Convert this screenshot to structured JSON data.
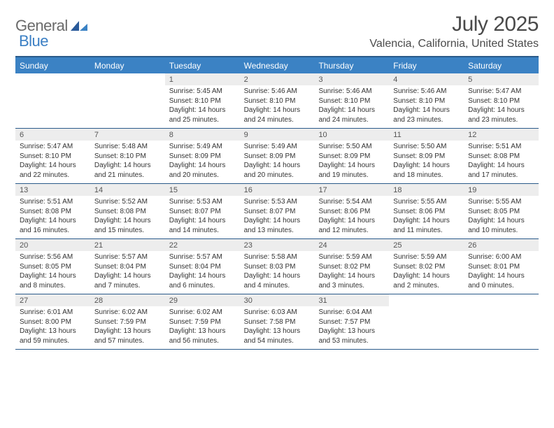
{
  "logo": {
    "text1": "General",
    "text2": "Blue"
  },
  "title": "July 2025",
  "location": "Valencia, California, United States",
  "colors": {
    "header_bg": "#3b82c4",
    "border": "#2a5a8a",
    "daynum_bg": "#ededed",
    "logo_gray": "#6a6a6a",
    "logo_blue": "#3b7fc4",
    "text": "#333333"
  },
  "day_names": [
    "Sunday",
    "Monday",
    "Tuesday",
    "Wednesday",
    "Thursday",
    "Friday",
    "Saturday"
  ],
  "weeks": [
    [
      null,
      null,
      {
        "num": "1",
        "sunrise": "5:45 AM",
        "sunset": "8:10 PM",
        "daylight": "14 hours and 25 minutes."
      },
      {
        "num": "2",
        "sunrise": "5:46 AM",
        "sunset": "8:10 PM",
        "daylight": "14 hours and 24 minutes."
      },
      {
        "num": "3",
        "sunrise": "5:46 AM",
        "sunset": "8:10 PM",
        "daylight": "14 hours and 24 minutes."
      },
      {
        "num": "4",
        "sunrise": "5:46 AM",
        "sunset": "8:10 PM",
        "daylight": "14 hours and 23 minutes."
      },
      {
        "num": "5",
        "sunrise": "5:47 AM",
        "sunset": "8:10 PM",
        "daylight": "14 hours and 23 minutes."
      }
    ],
    [
      {
        "num": "6",
        "sunrise": "5:47 AM",
        "sunset": "8:10 PM",
        "daylight": "14 hours and 22 minutes."
      },
      {
        "num": "7",
        "sunrise": "5:48 AM",
        "sunset": "8:10 PM",
        "daylight": "14 hours and 21 minutes."
      },
      {
        "num": "8",
        "sunrise": "5:49 AM",
        "sunset": "8:09 PM",
        "daylight": "14 hours and 20 minutes."
      },
      {
        "num": "9",
        "sunrise": "5:49 AM",
        "sunset": "8:09 PM",
        "daylight": "14 hours and 20 minutes."
      },
      {
        "num": "10",
        "sunrise": "5:50 AM",
        "sunset": "8:09 PM",
        "daylight": "14 hours and 19 minutes."
      },
      {
        "num": "11",
        "sunrise": "5:50 AM",
        "sunset": "8:09 PM",
        "daylight": "14 hours and 18 minutes."
      },
      {
        "num": "12",
        "sunrise": "5:51 AM",
        "sunset": "8:08 PM",
        "daylight": "14 hours and 17 minutes."
      }
    ],
    [
      {
        "num": "13",
        "sunrise": "5:51 AM",
        "sunset": "8:08 PM",
        "daylight": "14 hours and 16 minutes."
      },
      {
        "num": "14",
        "sunrise": "5:52 AM",
        "sunset": "8:08 PM",
        "daylight": "14 hours and 15 minutes."
      },
      {
        "num": "15",
        "sunrise": "5:53 AM",
        "sunset": "8:07 PM",
        "daylight": "14 hours and 14 minutes."
      },
      {
        "num": "16",
        "sunrise": "5:53 AM",
        "sunset": "8:07 PM",
        "daylight": "14 hours and 13 minutes."
      },
      {
        "num": "17",
        "sunrise": "5:54 AM",
        "sunset": "8:06 PM",
        "daylight": "14 hours and 12 minutes."
      },
      {
        "num": "18",
        "sunrise": "5:55 AM",
        "sunset": "8:06 PM",
        "daylight": "14 hours and 11 minutes."
      },
      {
        "num": "19",
        "sunrise": "5:55 AM",
        "sunset": "8:05 PM",
        "daylight": "14 hours and 10 minutes."
      }
    ],
    [
      {
        "num": "20",
        "sunrise": "5:56 AM",
        "sunset": "8:05 PM",
        "daylight": "14 hours and 8 minutes."
      },
      {
        "num": "21",
        "sunrise": "5:57 AM",
        "sunset": "8:04 PM",
        "daylight": "14 hours and 7 minutes."
      },
      {
        "num": "22",
        "sunrise": "5:57 AM",
        "sunset": "8:04 PM",
        "daylight": "14 hours and 6 minutes."
      },
      {
        "num": "23",
        "sunrise": "5:58 AM",
        "sunset": "8:03 PM",
        "daylight": "14 hours and 4 minutes."
      },
      {
        "num": "24",
        "sunrise": "5:59 AM",
        "sunset": "8:02 PM",
        "daylight": "14 hours and 3 minutes."
      },
      {
        "num": "25",
        "sunrise": "5:59 AM",
        "sunset": "8:02 PM",
        "daylight": "14 hours and 2 minutes."
      },
      {
        "num": "26",
        "sunrise": "6:00 AM",
        "sunset": "8:01 PM",
        "daylight": "14 hours and 0 minutes."
      }
    ],
    [
      {
        "num": "27",
        "sunrise": "6:01 AM",
        "sunset": "8:00 PM",
        "daylight": "13 hours and 59 minutes."
      },
      {
        "num": "28",
        "sunrise": "6:02 AM",
        "sunset": "7:59 PM",
        "daylight": "13 hours and 57 minutes."
      },
      {
        "num": "29",
        "sunrise": "6:02 AM",
        "sunset": "7:59 PM",
        "daylight": "13 hours and 56 minutes."
      },
      {
        "num": "30",
        "sunrise": "6:03 AM",
        "sunset": "7:58 PM",
        "daylight": "13 hours and 54 minutes."
      },
      {
        "num": "31",
        "sunrise": "6:04 AM",
        "sunset": "7:57 PM",
        "daylight": "13 hours and 53 minutes."
      },
      null,
      null
    ]
  ],
  "labels": {
    "sunrise": "Sunrise: ",
    "sunset": "Sunset: ",
    "daylight": "Daylight: "
  }
}
